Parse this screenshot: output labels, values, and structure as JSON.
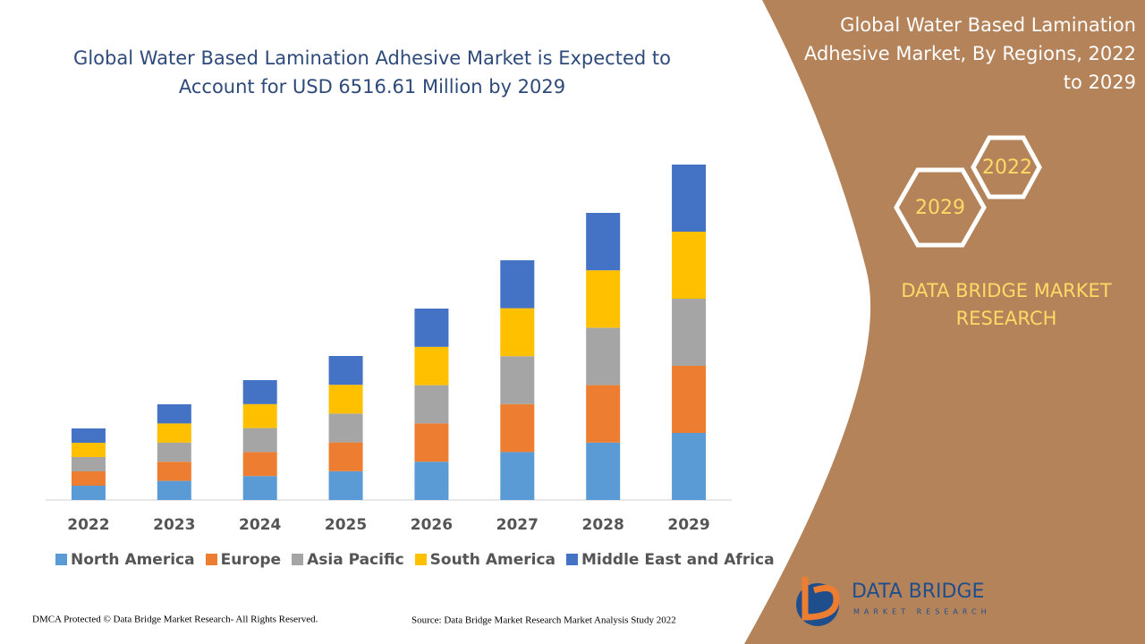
{
  "chart_data": {
    "type": "stacked-bar",
    "title": "Global Water Based Lamination Adhesive Market is Expected to Account for USD 6516.61 Million by 2029",
    "categories": [
      "2022",
      "2023",
      "2024",
      "2025",
      "2026",
      "2027",
      "2028",
      "2029"
    ],
    "series": [
      {
        "name": "North America",
        "color": "#5b9bd5",
        "values": [
          16,
          21.4,
          26.8,
          32.2,
          42.8,
          53.6,
          64.2,
          75
        ]
      },
      {
        "name": "Europe",
        "color": "#ed7d31",
        "values": [
          16,
          21.4,
          26.8,
          32.2,
          42.8,
          53.6,
          64.2,
          75
        ]
      },
      {
        "name": "Asia Pacific",
        "color": "#a5a5a5",
        "values": [
          16,
          21.4,
          26.8,
          32.2,
          42.8,
          53.6,
          64.2,
          75
        ]
      },
      {
        "name": "South America",
        "color": "#ffc000",
        "values": [
          16,
          21.4,
          26.8,
          32.2,
          42.8,
          53.6,
          64.2,
          75
        ]
      },
      {
        "name": "Middle East and Africa",
        "color": "#4472c4",
        "values": [
          16,
          21.4,
          26.8,
          32.2,
          42.8,
          53.6,
          64.2,
          75
        ]
      }
    ]
  },
  "side_panel": {
    "title": "Global Water Based Lamination Adhesive Market, By Regions, 2022 to 2029",
    "hex_start": "2022",
    "hex_end": "2029",
    "brand": "DATA BRIDGE MARKET RESEARCH"
  },
  "logo": {
    "name": "DATA BRIDGE",
    "tagline": "MARKET RESEARCH"
  },
  "footer": {
    "copyright": "DMCA Protected © Data Bridge Market Research- All Rights Reserved.",
    "source": "Source: Data Bridge Market Research Market Analysis Study 2022"
  }
}
